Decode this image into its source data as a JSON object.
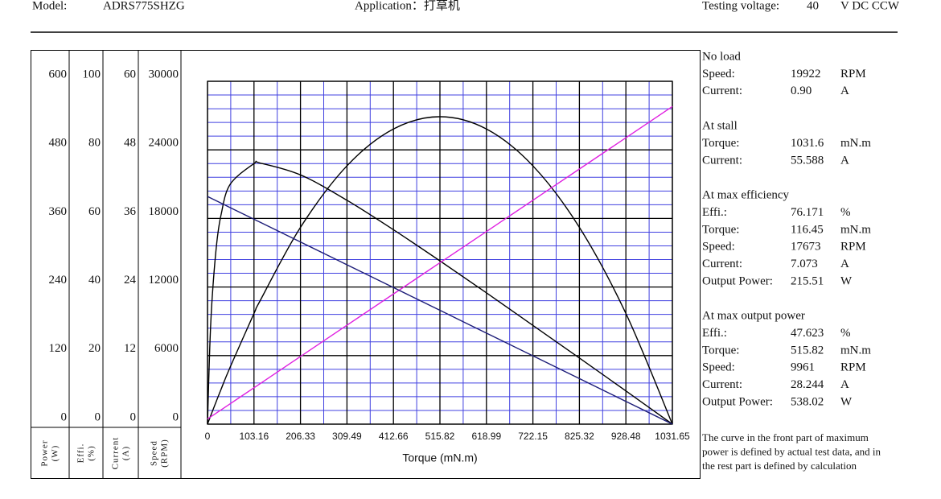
{
  "header": {
    "model_label": "Model:",
    "model": "ADRS775SHZG",
    "application": "Application：打草机",
    "voltage_label": "Testing voltage:",
    "voltage": "40",
    "voltage_unit": "V DC CCW"
  },
  "chart_data": {
    "type": "line",
    "xlabel": "Torque (mN.m)",
    "x": [
      0,
      5,
      10,
      20,
      30,
      50,
      103.16,
      116.45,
      206.33,
      309.49,
      412.66,
      515.82,
      618.99,
      722.15,
      825.32,
      928.48,
      1031.65
    ],
    "xlim": [
      0,
      1031.65
    ],
    "xticks": [
      0,
      103.16,
      206.33,
      309.49,
      412.66,
      515.82,
      618.99,
      722.15,
      825.32,
      928.48,
      1031.65
    ],
    "grid": true,
    "y_axes": [
      {
        "label": [
          "Power",
          "(W)"
        ],
        "ylim": [
          0,
          600
        ],
        "yticks": [
          0,
          120,
          240,
          360,
          480,
          600
        ],
        "color": "#000000",
        "values": [
          0,
          10.4,
          20.7,
          40.9,
          60.8,
          99.3,
          193.7,
          215.51,
          344.4,
          452.0,
          516.5,
          538.02,
          516.5,
          452.0,
          344.4,
          193.7,
          0
        ]
      },
      {
        "label": [
          "Effi.",
          "(%)"
        ],
        "ylim": [
          0,
          100
        ],
        "yticks": [
          0,
          20,
          40,
          60,
          80,
          100
        ],
        "color": "#000000",
        "values": [
          0,
          22.3,
          36.1,
          52.2,
          61.0,
          69.9,
          76.0,
          76.171,
          72.7,
          65.3,
          56.7,
          47.623,
          38.3,
          28.8,
          19.3,
          9.7,
          0
        ]
      },
      {
        "label": [
          "Current",
          "(A)"
        ],
        "ylim": [
          0,
          60
        ],
        "yticks": [
          0,
          12,
          24,
          36,
          48,
          60
        ],
        "color": "#e020e0",
        "values": [
          0.9,
          1.17,
          1.43,
          1.96,
          2.49,
          3.55,
          6.37,
          7.073,
          11.84,
          17.31,
          22.78,
          28.244,
          33.71,
          39.18,
          44.65,
          50.12,
          55.588
        ]
      },
      {
        "label": [
          "Speed",
          "(RPM)"
        ],
        "ylim": [
          0,
          30000
        ],
        "yticks": [
          0,
          6000,
          12000,
          18000,
          24000,
          30000
        ],
        "color": "#1c1c78",
        "values": [
          19922,
          19825,
          19729,
          19536,
          19343,
          18956,
          17930,
          17673,
          15938,
          13945,
          11953,
          9961,
          7969,
          5977,
          3984,
          1992,
          0
        ]
      }
    ]
  },
  "info": [
    {
      "heading": "No load",
      "rows": [
        [
          "Speed:",
          "19922",
          "RPM"
        ],
        [
          "Current:",
          "0.90",
          "A"
        ]
      ]
    },
    {
      "heading": "At stall",
      "rows": [
        [
          "Torque:",
          "1031.6",
          "mN.m"
        ],
        [
          "Current:",
          "55.588",
          "A"
        ]
      ]
    },
    {
      "heading": "At max efficiency",
      "rows": [
        [
          "Effi.:",
          "76.171",
          "%"
        ],
        [
          "Torque:",
          "116.45",
          "mN.m"
        ],
        [
          "Speed:",
          "17673",
          "RPM"
        ],
        [
          "Current:",
          "7.073",
          "A"
        ],
        [
          "Output Power:",
          "215.51",
          "W"
        ]
      ]
    },
    {
      "heading": "At max output power",
      "rows": [
        [
          "Effi.:",
          "47.623",
          "%"
        ],
        [
          "Torque:",
          "515.82",
          "mN.m"
        ],
        [
          "Speed:",
          "9961",
          "RPM"
        ],
        [
          "Current:",
          "28.244",
          "A"
        ],
        [
          "Output Power:",
          "538.02",
          "W"
        ]
      ]
    }
  ],
  "note": [
    "The curve in the front part of maximum",
    "power is defined by actual test data, and in",
    "the rest part is defined by calculation"
  ]
}
